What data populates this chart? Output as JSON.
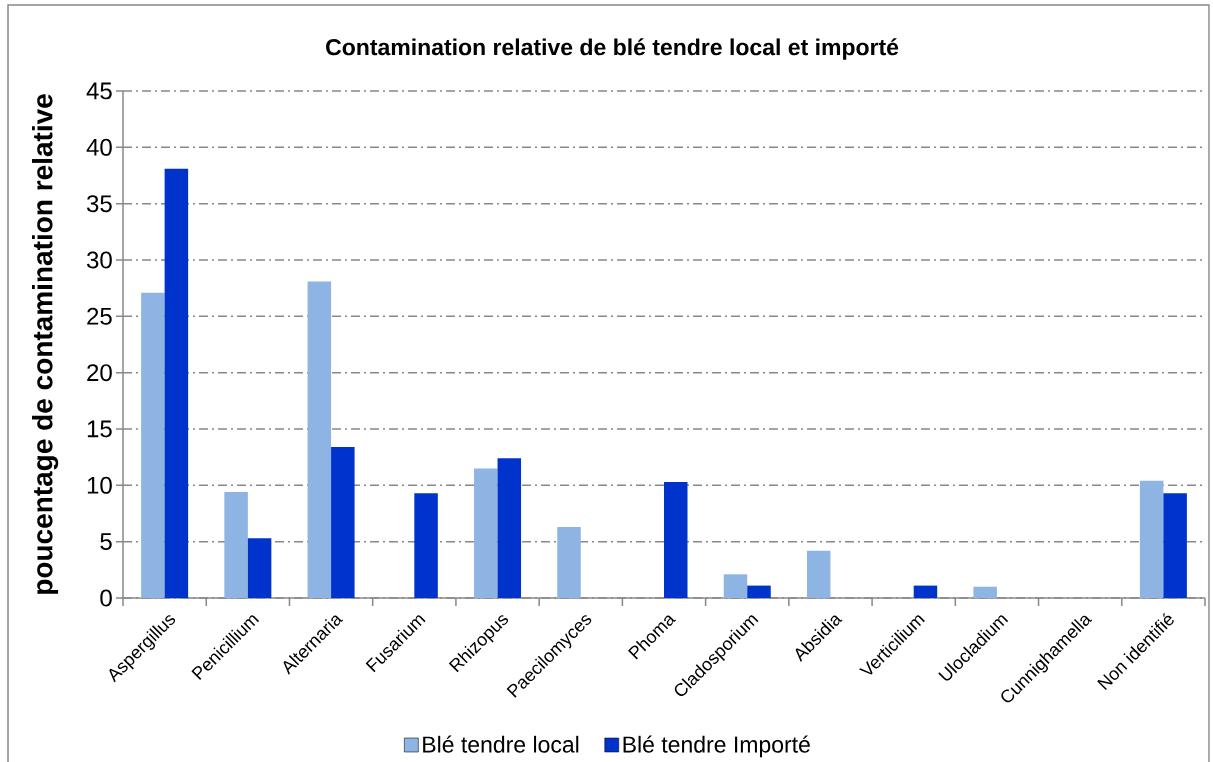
{
  "chart_data": {
    "type": "bar",
    "title": "Contamination relative de blé tendre local et importé",
    "ylabel": "poucentage de contamination relative",
    "categories": [
      "Aspergillus",
      "Penicillium",
      "Alternaria",
      "Fusarium",
      "Rhizopus",
      "Paecilomyces",
      "Phoma",
      "Cladosporium",
      "Absidia",
      "Verticilium",
      "Ulocladium",
      "Cunnighamella",
      "Non identifié"
    ],
    "series": [
      {
        "name": "Blé tendre local",
        "color": "#8eb4e3",
        "values": [
          27.1,
          9.4,
          28.1,
          null,
          11.5,
          6.3,
          null,
          2.1,
          4.2,
          null,
          1.0,
          null,
          10.4
        ]
      },
      {
        "name": "Blé tendre Importé",
        "color": "#0033cc",
        "values": [
          38.1,
          5.3,
          13.4,
          9.3,
          12.4,
          null,
          10.3,
          1.1,
          null,
          1.1,
          null,
          null,
          9.3
        ]
      }
    ],
    "ylim": [
      0,
      45
    ],
    "yticks": [
      0,
      5,
      10,
      15,
      20,
      25,
      30,
      35,
      40,
      45
    ],
    "grid": "y",
    "legend": "bottom"
  }
}
